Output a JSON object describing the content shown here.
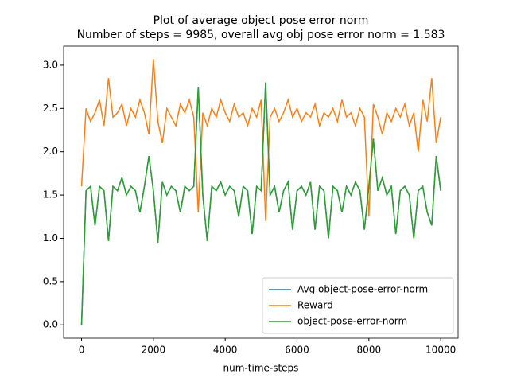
{
  "chart_data": {
    "type": "line",
    "title": "Plot of average object pose error norm",
    "subtitle": "Number of steps = 9985, overall avg obj pose error norm = 1.583",
    "x_label": "num-time-steps",
    "x": [
      0,
      125,
      250,
      375,
      500,
      625,
      750,
      875,
      1000,
      1125,
      1250,
      1375,
      1500,
      1625,
      1750,
      1875,
      2000,
      2125,
      2250,
      2375,
      2500,
      2625,
      2750,
      2875,
      3000,
      3125,
      3250,
      3375,
      3500,
      3625,
      3750,
      3875,
      4000,
      4125,
      4250,
      4375,
      4500,
      4625,
      4750,
      4875,
      5000,
      5125,
      5250,
      5375,
      5500,
      5625,
      5750,
      5875,
      6000,
      6125,
      6250,
      6375,
      6500,
      6625,
      6750,
      6875,
      7000,
      7125,
      7250,
      7375,
      7500,
      7625,
      7750,
      7875,
      8000,
      8125,
      8250,
      8375,
      8500,
      8625,
      8750,
      8875,
      9000,
      9125,
      9250,
      9375,
      9500,
      9625,
      9750,
      9875,
      10000
    ],
    "series": [
      {
        "name": "Avg object-pose-error-norm",
        "color": "#1f77b4",
        "values": [
          0,
          1.55,
          1.6,
          1.15,
          1.6,
          1.55,
          0.97,
          1.6,
          1.55,
          1.7,
          1.5,
          1.6,
          1.55,
          1.3,
          1.6,
          1.95,
          1.55,
          0.95,
          1.65,
          1.5,
          1.6,
          1.55,
          1.3,
          1.6,
          1.55,
          1.6,
          2.75,
          1.5,
          0.97,
          1.6,
          1.55,
          1.65,
          1.5,
          1.6,
          1.55,
          1.25,
          1.6,
          1.55,
          1.05,
          1.6,
          1.55,
          2.8,
          1.5,
          1.6,
          1.3,
          1.55,
          1.65,
          1.1,
          1.55,
          1.6,
          1.5,
          1.65,
          1.1,
          1.6,
          1.55,
          1.0,
          1.6,
          1.55,
          1.3,
          1.6,
          1.5,
          1.65,
          1.55,
          1.1,
          1.6,
          2.15,
          1.55,
          1.7,
          1.5,
          1.6,
          1.05,
          1.55,
          1.6,
          1.5,
          1.0,
          1.55,
          1.6,
          1.3,
          1.15,
          1.95,
          1.55
        ]
      },
      {
        "name": "Reward",
        "color": "#ff7f0e",
        "values": [
          1.6,
          2.5,
          2.35,
          2.45,
          2.6,
          2.3,
          2.85,
          2.4,
          2.45,
          2.55,
          2.3,
          2.5,
          2.4,
          2.6,
          2.45,
          2.2,
          3.07,
          2.35,
          2.1,
          2.5,
          2.4,
          2.3,
          2.55,
          2.45,
          2.6,
          2.4,
          1.3,
          2.45,
          2.3,
          2.5,
          2.4,
          2.6,
          2.45,
          2.35,
          2.55,
          2.4,
          2.45,
          2.3,
          2.5,
          2.4,
          2.6,
          1.2,
          2.4,
          2.5,
          2.35,
          2.45,
          2.6,
          2.4,
          2.5,
          2.35,
          2.45,
          2.4,
          2.55,
          2.3,
          2.45,
          2.4,
          2.5,
          2.35,
          2.6,
          2.4,
          2.45,
          2.3,
          2.5,
          2.4,
          1.25,
          2.55,
          2.4,
          2.2,
          2.45,
          2.35,
          2.5,
          2.4,
          2.55,
          2.3,
          2.45,
          2.0,
          2.6,
          2.35,
          2.85,
          2.1,
          2.4
        ]
      },
      {
        "name": "object-pose-error-norm",
        "color": "#2ca02c",
        "values": [
          0,
          1.55,
          1.6,
          1.15,
          1.6,
          1.55,
          0.97,
          1.6,
          1.55,
          1.7,
          1.5,
          1.6,
          1.55,
          1.3,
          1.6,
          1.95,
          1.55,
          0.95,
          1.65,
          1.5,
          1.6,
          1.55,
          1.3,
          1.6,
          1.55,
          1.6,
          2.75,
          1.5,
          0.97,
          1.6,
          1.55,
          1.65,
          1.5,
          1.6,
          1.55,
          1.25,
          1.6,
          1.55,
          1.05,
          1.6,
          1.55,
          2.8,
          1.5,
          1.6,
          1.3,
          1.55,
          1.65,
          1.1,
          1.55,
          1.6,
          1.5,
          1.65,
          1.1,
          1.6,
          1.55,
          1.0,
          1.6,
          1.55,
          1.3,
          1.6,
          1.5,
          1.65,
          1.55,
          1.1,
          1.6,
          2.15,
          1.55,
          1.7,
          1.5,
          1.6,
          1.05,
          1.55,
          1.6,
          1.5,
          1.0,
          1.55,
          1.6,
          1.3,
          1.15,
          1.95,
          1.55
        ]
      }
    ],
    "xlim": [
      -499,
      10484
    ],
    "xticks": [
      0,
      2000,
      4000,
      6000,
      8000,
      10000
    ],
    "ylim": [
      -0.154,
      3.22
    ],
    "yticks": [
      {
        "value": 0,
        "label": "0.0"
      },
      0.5,
      {
        "value": 1,
        "label": "1.0"
      },
      1.5,
      {
        "value": 2,
        "label": "2.0"
      },
      2.5,
      {
        "value": 3,
        "label": "3.0"
      }
    ],
    "legend": "lower right"
  }
}
